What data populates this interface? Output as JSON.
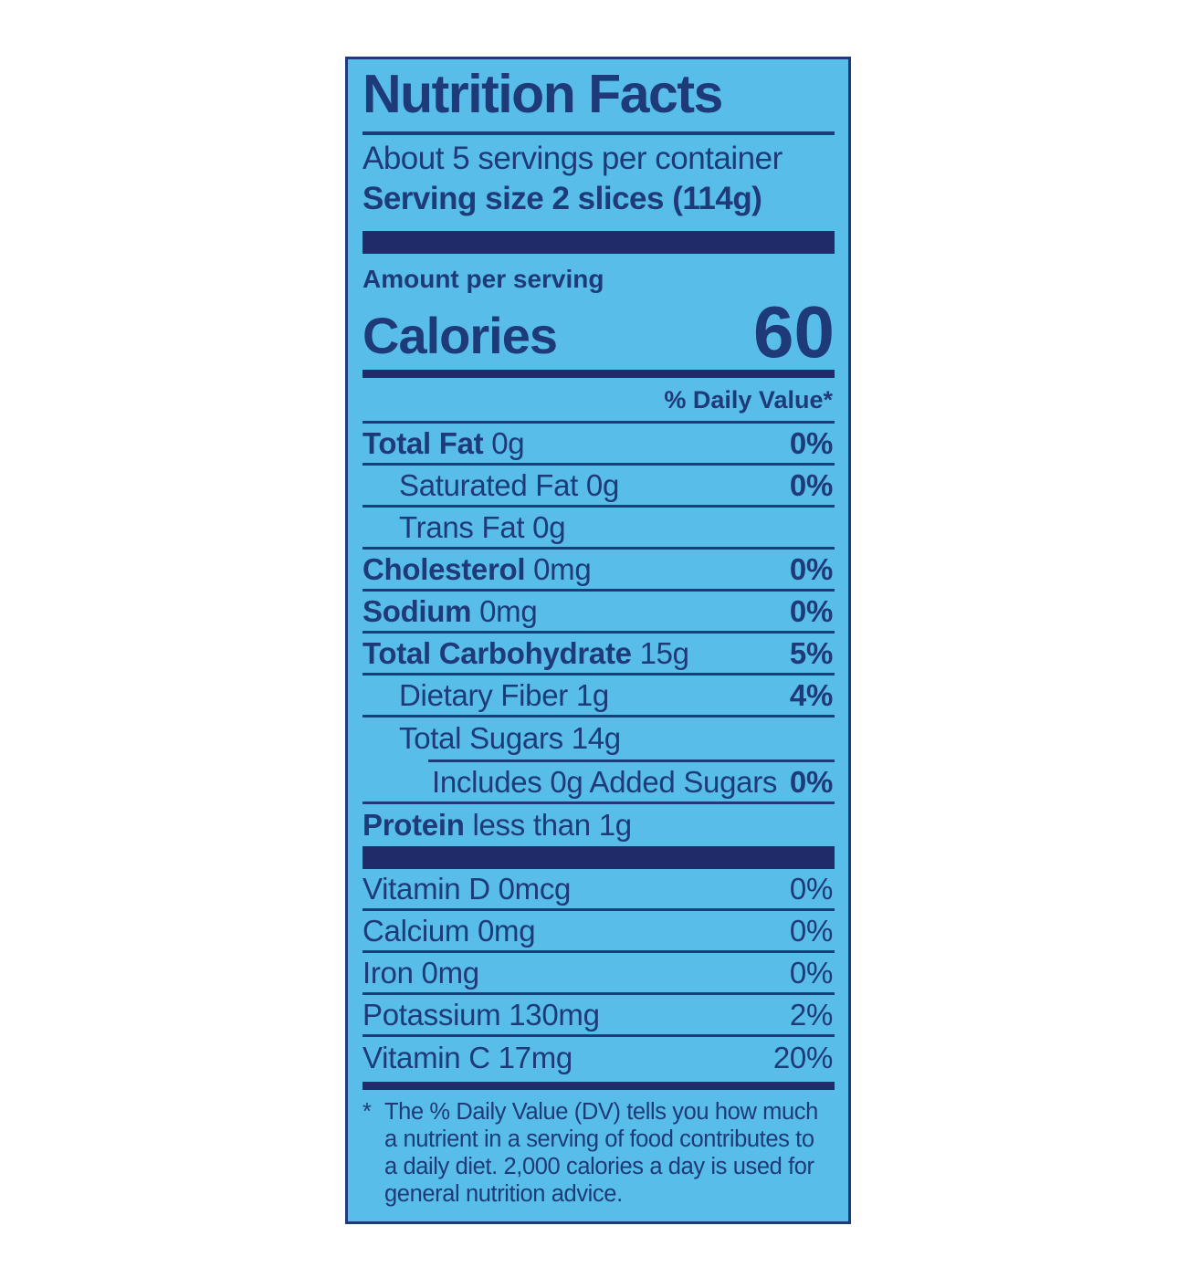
{
  "label": {
    "title": "Nutrition Facts",
    "servings_per_container": "About 5 servings per container",
    "serving_size": "Serving size 2 slices (114g)",
    "amount_per_serving": "Amount per serving",
    "calories_label": "Calories",
    "calories_value": "60",
    "daily_value_header": "% Daily Value*",
    "rows": [
      {
        "name": "Total Fat",
        "amount": "0g",
        "pct": "0%"
      },
      {
        "name": "Saturated Fat 0g",
        "amount": "",
        "pct": "0%"
      },
      {
        "name": "Trans Fat 0g",
        "amount": "",
        "pct": ""
      },
      {
        "name": "Cholesterol",
        "amount": "0mg",
        "pct": "0%"
      },
      {
        "name": "Sodium",
        "amount": "0mg",
        "pct": "0%"
      },
      {
        "name": "Total Carbohydrate",
        "amount": "15g",
        "pct": "5%"
      },
      {
        "name": "Dietary Fiber 1g",
        "amount": "",
        "pct": "4%"
      },
      {
        "name": "Total Sugars 14g",
        "amount": "",
        "pct": ""
      },
      {
        "name": "Includes 0g Added Sugars",
        "amount": "",
        "pct": "0%"
      },
      {
        "name": "Protein",
        "amount": "less than 1g",
        "pct": ""
      }
    ],
    "micronutrients": [
      {
        "name": "Vitamin D 0mcg",
        "pct": "0%"
      },
      {
        "name": "Calcium 0mg",
        "pct": "0%"
      },
      {
        "name": "Iron 0mg",
        "pct": "0%"
      },
      {
        "name": "Potassium 130mg",
        "pct": "2%"
      },
      {
        "name": "Vitamin C 17mg",
        "pct": "20%"
      }
    ],
    "footnote_marker": "*",
    "footnote": "The % Daily Value (DV) tells you how much a nutrient in a serving of food contributes to a daily diet. 2,000 calories a day is used for general nutrition advice."
  },
  "colors": {
    "panel_background": "#58bee9",
    "navy_text": "#1e3a78",
    "navy_bar": "#202c6a",
    "page_background": "#ffffff"
  }
}
